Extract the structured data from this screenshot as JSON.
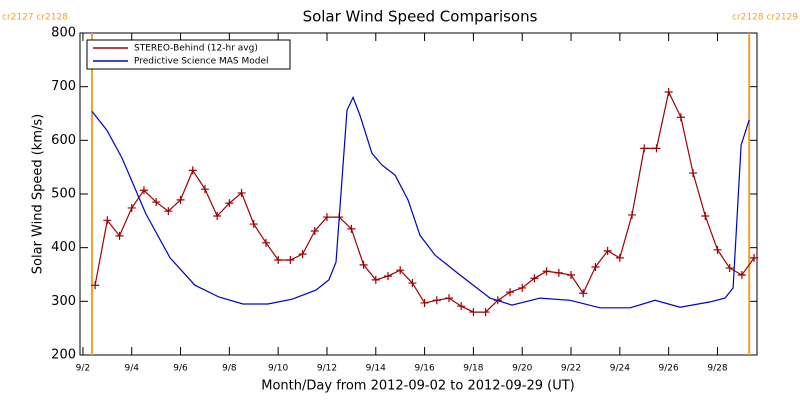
{
  "chart_data": {
    "type": "line",
    "title": "Solar Wind Speed Comparisons",
    "xlabel": "Month/Day from 2012-09-02 to 2012-09-29 (UT)",
    "ylabel": "Solar Wind Speed (km/s)",
    "xlim": [
      1.88,
      29.62
    ],
    "ylim": [
      200,
      800
    ],
    "yticks": [
      200,
      300,
      400,
      500,
      600,
      700,
      800
    ],
    "xticks": [
      {
        "value": 2,
        "label": "9/2"
      },
      {
        "value": 4,
        "label": "9/4"
      },
      {
        "value": 6,
        "label": "9/6"
      },
      {
        "value": 8,
        "label": "9/8"
      },
      {
        "value": 10,
        "label": "9/10"
      },
      {
        "value": 12,
        "label": "9/12"
      },
      {
        "value": 14,
        "label": "9/14"
      },
      {
        "value": 16,
        "label": "9/16"
      },
      {
        "value": 18,
        "label": "9/18"
      },
      {
        "value": 20,
        "label": "9/20"
      },
      {
        "value": 22,
        "label": "9/22"
      },
      {
        "value": 24,
        "label": "9/24"
      },
      {
        "value": 26,
        "label": "9/26"
      },
      {
        "value": 28,
        "label": "9/28"
      }
    ],
    "legend": "upper left",
    "markers": [
      {
        "x": 2.37,
        "label": "cr2127 cr2128",
        "color": "#f0a030"
      },
      {
        "x": 29.3,
        "label": "cr2128 cr2129",
        "color": "#f0a030"
      }
    ],
    "series": [
      {
        "name": "STEREO-Behind (12-hr avg)",
        "color": "#a00000",
        "marker": "+",
        "x": [
          2.5,
          3,
          3.5,
          4,
          4.5,
          5,
          5.5,
          6,
          6.5,
          7,
          7.5,
          8,
          8.5,
          9,
          9.5,
          10,
          10.5,
          11,
          11.5,
          12,
          12.5,
          13,
          13.5,
          14,
          14.5,
          15,
          15.5,
          16,
          16.5,
          17,
          17.5,
          18,
          18.5,
          19,
          19.5,
          20,
          20.5,
          21,
          21.5,
          22,
          22.5,
          23,
          23.5,
          24,
          24.5,
          25,
          25.5,
          26,
          26.5,
          27,
          27.5,
          28,
          28.5,
          29,
          29.5
        ],
        "values": [
          330,
          451,
          422,
          474,
          507,
          485,
          468,
          489,
          544,
          509,
          459,
          483,
          502,
          444,
          409,
          377,
          377,
          388,
          431,
          457,
          457,
          435,
          368,
          340,
          347,
          358,
          334,
          297,
          302,
          306,
          291,
          280,
          280,
          302,
          317,
          325,
          343,
          356,
          353,
          349,
          315,
          364,
          394,
          381,
          461,
          585,
          585,
          690,
          643,
          539,
          459,
          396,
          362,
          349,
          381
        ]
      },
      {
        "name": "Predictive Science MAS Model",
        "color": "#0000c8",
        "x": [
          2.37,
          2.98,
          3.6,
          4.58,
          5.57,
          6.59,
          7.57,
          8.56,
          9.58,
          10.57,
          11.55,
          12.08,
          12.37,
          12.82,
          13.07,
          13.35,
          13.84,
          14.25,
          14.79,
          15.32,
          15.81,
          16.43,
          17.45,
          18.68,
          19.58,
          20.73,
          21.96,
          23.19,
          24.42,
          25.44,
          26.47,
          27.7,
          28.31,
          28.64,
          28.97,
          29.3
        ],
        "values": [
          654,
          619,
          567,
          463,
          381,
          330,
          308,
          295,
          295,
          304,
          321,
          340,
          373,
          656,
          680,
          647,
          576,
          554,
          535,
          489,
          423,
          386,
          349,
          306,
          293,
          306,
          302,
          288,
          288,
          302,
          289,
          299,
          306,
          325,
          591,
          638
        ]
      }
    ]
  }
}
